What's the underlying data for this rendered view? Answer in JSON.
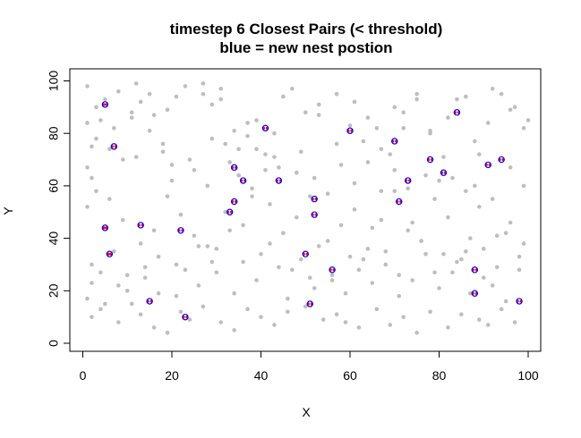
{
  "chart_data": {
    "type": "scatter",
    "title": "timestep  6 Closest Pairs (< threshold)",
    "subtitle": "blue = new nest postion",
    "xlabel": "X",
    "ylabel": "Y",
    "xlim": [
      0,
      100
    ],
    "ylim": [
      0,
      100
    ],
    "x_ticks": [
      0,
      20,
      40,
      60,
      80,
      100
    ],
    "y_ticks": [
      0,
      20,
      40,
      60,
      80,
      100
    ],
    "grid": false,
    "colors": {
      "background_points": "#bebebe",
      "pair_points": "#ff0000",
      "new_nest": "#0000ff"
    },
    "series": [
      {
        "role": "background",
        "x": [
          1,
          2,
          3,
          2,
          1,
          5,
          8,
          11,
          12,
          15,
          18,
          20,
          21,
          24,
          27,
          29,
          31,
          33,
          35,
          37,
          39,
          41,
          43,
          47,
          50,
          53,
          57,
          60,
          63,
          66,
          69,
          72,
          75,
          78,
          81,
          84,
          88,
          91,
          94,
          97,
          99,
          1,
          3,
          6,
          9,
          13,
          16,
          19,
          22,
          25,
          28,
          32,
          36,
          38,
          42,
          45,
          48,
          51,
          55,
          58,
          61,
          64,
          67,
          70,
          73,
          76,
          79,
          82,
          86,
          89,
          93,
          96,
          99,
          2,
          4,
          7,
          10,
          14,
          17,
          21,
          23,
          26,
          29,
          30,
          34,
          39,
          44,
          46,
          49,
          52,
          56,
          59,
          62,
          65,
          68,
          71,
          74,
          77,
          80,
          83,
          85,
          87,
          90,
          92,
          95,
          98,
          1,
          2,
          4,
          8,
          11,
          13,
          16,
          19,
          22,
          24,
          27,
          31,
          34,
          37,
          40,
          43,
          46,
          50,
          54,
          57,
          59,
          62,
          66,
          69,
          72,
          75,
          78,
          82,
          85,
          89,
          91,
          94,
          97,
          3,
          6,
          9,
          12,
          15,
          18,
          20,
          25,
          28,
          32,
          35,
          38,
          41,
          44,
          48,
          52,
          55,
          58,
          61,
          64,
          67,
          70,
          73,
          77,
          80,
          83,
          86,
          88,
          92,
          96,
          99,
          2,
          5,
          8,
          10,
          14,
          17,
          21,
          26,
          30,
          33,
          36,
          40,
          42,
          47,
          51,
          53,
          56,
          60,
          63,
          65,
          68,
          71,
          74,
          76,
          79,
          81,
          84,
          87,
          90,
          93,
          95,
          98,
          1,
          4,
          7,
          11,
          13,
          16,
          19,
          23,
          27,
          29,
          31,
          34,
          37,
          39,
          43,
          45,
          49,
          53,
          57,
          61,
          64,
          67,
          70,
          72,
          75,
          78,
          82,
          86,
          89,
          92,
          96,
          100
        ],
        "y": [
          84,
          75,
          90,
          63,
          67,
          93,
          96,
          86,
          99,
          95,
          76,
          68,
          94,
          70,
          99,
          91,
          93,
          69,
          74,
          79,
          85,
          66,
          71,
          97,
          88,
          91,
          95,
          83,
          77,
          82,
          72,
          88,
          93,
          80,
          71,
          93,
          77,
          84,
          95,
          90,
          82,
          52,
          58,
          55,
          47,
          38,
          43,
          56,
          49,
          41,
          37,
          50,
          45,
          59,
          53,
          42,
          48,
          56,
          39,
          45,
          51,
          36,
          47,
          58,
          43,
          39,
          55,
          48,
          35,
          52,
          41,
          46,
          38,
          30,
          27,
          35,
          20,
          25,
          33,
          18,
          28,
          22,
          31,
          27,
          19,
          24,
          29,
          17,
          32,
          21,
          26,
          19,
          28,
          23,
          30,
          18,
          24,
          34,
          21,
          27,
          32,
          19,
          25,
          22,
          16,
          28,
          17,
          10,
          13,
          8,
          15,
          11,
          6,
          4,
          12,
          9,
          14,
          8,
          5,
          13,
          10,
          7,
          12,
          14,
          9,
          11,
          8,
          6,
          13,
          7,
          10,
          4,
          12,
          6,
          11,
          9,
          7,
          13,
          8,
          78,
          74,
          70,
          71,
          81,
          73,
          62,
          66,
          60,
          76,
          64,
          56,
          72,
          67,
          65,
          63,
          57,
          68,
          61,
          69,
          58,
          66,
          59,
          64,
          62,
          63,
          58,
          60,
          55,
          67,
          60,
          23,
          15,
          22,
          26,
          29,
          19,
          30,
          37,
          36,
          43,
          31,
          34,
          38,
          28,
          25,
          37,
          24,
          33,
          32,
          44,
          35,
          26,
          46,
          39,
          27,
          34,
          31,
          40,
          36,
          29,
          42,
          33,
          98,
          85,
          82,
          88,
          92,
          87,
          89,
          98,
          95,
          78,
          97,
          81,
          84,
          74,
          80,
          94,
          73,
          87,
          76,
          92,
          86,
          74,
          90,
          82,
          95,
          81,
          86,
          94,
          72,
          97,
          89,
          85
        ]
      },
      {
        "role": "closest-pair-points",
        "x": [
          4.7,
          5.3,
          6.6,
          7.4,
          4.7,
          5.3,
          5.7,
          6.3,
          12.6,
          13.4,
          14.6,
          15.4,
          21.6,
          22.4,
          22.6,
          23.4,
          32.6,
          33.4,
          33.6,
          34.4,
          33.6,
          34.4,
          35.6,
          36.4,
          40.6,
          41.4,
          43.6,
          44.4,
          49.6,
          50.4,
          50.6,
          51.4,
          51.6,
          52.4,
          51.6,
          52.4,
          55.6,
          56.4,
          59.6,
          60.4,
          69.6,
          70.4,
          70.6,
          71.4,
          72.6,
          73.4,
          77.6,
          78.4,
          80.6,
          81.4,
          83.6,
          84.4,
          87.6,
          88.4,
          87.6,
          88.4,
          90.6,
          91.4,
          93.6,
          94.4,
          97.6,
          98.4
        ],
        "y": [
          91,
          91,
          75,
          75,
          44,
          44,
          34,
          34,
          45,
          45,
          16,
          16,
          43,
          43,
          10,
          10,
          50,
          50,
          54,
          54,
          67,
          67,
          62,
          62,
          82,
          82,
          62,
          62,
          34,
          34,
          15,
          15,
          55,
          55,
          49,
          49,
          28,
          28,
          81,
          81,
          77,
          77,
          54,
          54,
          62,
          62,
          70,
          70,
          65,
          65,
          88,
          88,
          28,
          28,
          19,
          19,
          68,
          68,
          70,
          70,
          16,
          16
        ]
      },
      {
        "role": "new-nest",
        "name": "new nest",
        "x": [
          5,
          7,
          5,
          6,
          13,
          15,
          22,
          23,
          33,
          34,
          34,
          36,
          41,
          44,
          50,
          51,
          52,
          52,
          56,
          60,
          70,
          71,
          73,
          78,
          81,
          84,
          88,
          88,
          91,
          94,
          98
        ],
        "y": [
          91,
          75,
          44,
          34,
          45,
          16,
          43,
          10,
          50,
          54,
          67,
          62,
          82,
          62,
          34,
          15,
          55,
          49,
          28,
          81,
          77,
          54,
          62,
          70,
          65,
          88,
          28,
          19,
          68,
          70,
          16
        ]
      }
    ]
  }
}
